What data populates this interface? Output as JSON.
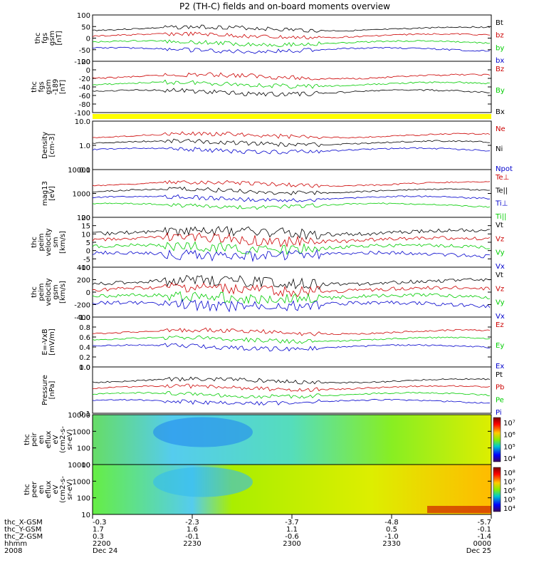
{
  "title": "P2 (TH-C) fields and on-board moments overview",
  "chart_data": [
    {
      "type": "line",
      "ylabel": [
        "thc",
        "fgs",
        "gsm",
        "[nT]"
      ],
      "ylim": [
        -100,
        100
      ],
      "yticks": [
        "100",
        "50",
        "0",
        "-50",
        "-100"
      ],
      "legend": [
        {
          "name": "Bt",
          "color": "#000000"
        },
        {
          "name": "bz",
          "color": "#cc0000"
        },
        {
          "name": "by",
          "color": "#00cc00"
        },
        {
          "name": "bx",
          "color": "#0000cc"
        }
      ]
    },
    {
      "type": "line",
      "ylabel": [
        "thc",
        "fgs",
        "gsm",
        "-189",
        "[nT]"
      ],
      "ylim": [
        -100,
        20
      ],
      "yticks": [
        "20",
        "0",
        "-20",
        "-40",
        "-60",
        "-80",
        "-100"
      ],
      "legend": [
        {
          "name": "Bz",
          "color": "#cc0000"
        },
        {
          "name": "By",
          "color": "#00cc00"
        },
        {
          "name": "Bx",
          "color": "#000000"
        }
      ]
    },
    {
      "type": "line",
      "ylabel": [
        "Density",
        "[cm-3]"
      ],
      "yscale": "log",
      "yticks": [
        "10.0",
        "1.0",
        "0.1"
      ],
      "legend": [
        {
          "name": "Ne",
          "color": "#cc0000"
        },
        {
          "name": "Ni",
          "color": "#000000"
        },
        {
          "name": "Npot",
          "color": "#0000cc"
        }
      ]
    },
    {
      "type": "line",
      "ylabel": [
        "mag13",
        "[eV]"
      ],
      "yscale": "log",
      "yticks": [
        "10000",
        "1000",
        "100"
      ],
      "legend": [
        {
          "name": "Te⊥",
          "color": "#cc0000"
        },
        {
          "name": "Te||",
          "color": "#000000"
        },
        {
          "name": "Ti⊥",
          "color": "#0000cc"
        },
        {
          "name": "Ti||",
          "color": "#00cc00"
        }
      ]
    },
    {
      "type": "line",
      "ylabel": [
        "thc",
        "peim",
        "velocity",
        "sm",
        "[km/s]"
      ],
      "ylim": [
        -10,
        20
      ],
      "yticks": [
        "20",
        "15",
        "10",
        "5",
        "0",
        "-5",
        "-10"
      ],
      "legend": [
        {
          "name": "Vt",
          "color": "#000000"
        },
        {
          "name": "Vz",
          "color": "#cc0000"
        },
        {
          "name": "Vy",
          "color": "#00cc00"
        },
        {
          "name": "Vx",
          "color": "#0000cc"
        }
      ]
    },
    {
      "type": "line",
      "ylabel": [
        "thc",
        "peim",
        "velocity",
        "gsm",
        "[km/s]"
      ],
      "ylim": [
        -400,
        400
      ],
      "yticks": [
        "400",
        "200",
        "0",
        "-200",
        "-400"
      ],
      "legend": [
        {
          "name": "Vt",
          "color": "#000000"
        },
        {
          "name": "Vz",
          "color": "#cc0000"
        },
        {
          "name": "Vy",
          "color": "#00cc00"
        },
        {
          "name": "Vx",
          "color": "#0000cc"
        }
      ]
    },
    {
      "type": "line",
      "ylabel": [
        "E=-VxB",
        "[mV/m]"
      ],
      "ylim": [
        0,
        1
      ],
      "yticks": [
        "1.0",
        "0.8",
        "0.6",
        "0.4",
        "0.2",
        "0.0"
      ],
      "legend": [
        {
          "name": "Ez",
          "color": "#cc0000"
        },
        {
          "name": "Ey",
          "color": "#00cc00"
        },
        {
          "name": "Ex",
          "color": "#0000cc"
        }
      ]
    },
    {
      "type": "line",
      "ylabel": [
        "Pressure",
        "[nPa]"
      ],
      "yscale": "log",
      "yticks": [
        "1.0",
        "0.1"
      ],
      "legend": [
        {
          "name": "Pt",
          "color": "#000000"
        },
        {
          "name": "Pb",
          "color": "#cc0000"
        },
        {
          "name": "Pe",
          "color": "#00cc00"
        },
        {
          "name": "Pi",
          "color": "#0000cc"
        }
      ]
    },
    {
      "type": "heatmap",
      "ylabel": [
        "thc",
        "peir",
        "en",
        "eflux",
        "eV",
        "(cm2-s-",
        "sr-eV)"
      ],
      "yscale": "log",
      "yticks": [
        "10000",
        "1000",
        "100",
        "10"
      ],
      "colorbar_ticks": [
        "10⁷",
        "10⁶",
        "10⁵",
        "10⁴"
      ]
    },
    {
      "type": "heatmap",
      "ylabel": [
        "thc",
        "peer",
        "en",
        "eflux",
        "eV",
        "(cm2-s-",
        "sr-eV)"
      ],
      "yscale": "log",
      "yticks": [
        "10000",
        "1000",
        "100",
        "10"
      ],
      "colorbar_ticks": [
        "10⁸",
        "10⁷",
        "10⁶",
        "10⁵",
        "10⁴"
      ]
    }
  ],
  "xaxis": {
    "row_labels": [
      "thc_X-GSM",
      "thc_Y-GSM",
      "thc_Z-GSM",
      "hhmm",
      "2008"
    ],
    "columns": [
      {
        "values": [
          "-0.3",
          "1.7",
          "0.3",
          "2200",
          "Dec 24"
        ]
      },
      {
        "values": [
          "-2.3",
          "1.6",
          "-0.1",
          "2230",
          ""
        ]
      },
      {
        "values": [
          "-3.7",
          "1.1",
          "-0.6",
          "2300",
          ""
        ]
      },
      {
        "values": [
          "-4.8",
          "0.5",
          "-1.0",
          "2330",
          ""
        ]
      },
      {
        "values": [
          "-5.7",
          "-0.1",
          "-1.4",
          "0000",
          "Dec 25"
        ]
      }
    ]
  }
}
